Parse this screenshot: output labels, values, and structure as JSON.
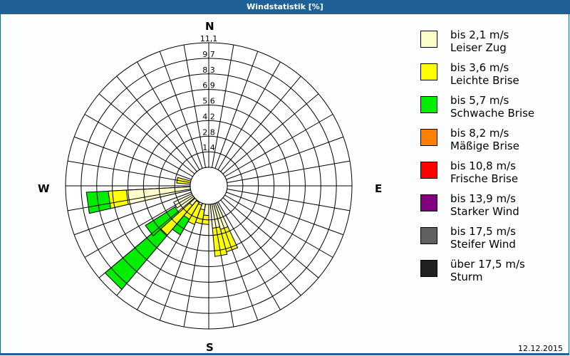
{
  "header": {
    "title": "Windstatistik [%]"
  },
  "compass": {
    "north": "N",
    "east": "E",
    "south": "S",
    "west": "W"
  },
  "footer": {
    "date": "12.12.2015"
  },
  "legend": [
    {
      "range": "bis 2,1 m/s",
      "name": "Leiser Zug",
      "color": "#ffffcc"
    },
    {
      "range": "bis 3,6 m/s",
      "name": "Leichte Brise",
      "color": "#ffff00"
    },
    {
      "range": "bis 5,7 m/s",
      "name": "Schwache Brise",
      "color": "#00ee00"
    },
    {
      "range": "bis 8,2 m/s",
      "name": "Mäßige Brise",
      "color": "#ff8000"
    },
    {
      "range": "bis 10,8 m/s",
      "name": "Frische Brise",
      "color": "#ff0000"
    },
    {
      "range": "bis 13,9 m/s",
      "name": "Starker Wind",
      "color": "#800080"
    },
    {
      "range": "bis 17,5 m/s",
      "name": "Steifer Wind",
      "color": "#606060"
    },
    {
      "range": "über 17,5 m/s",
      "name": "Sturm",
      "color": "#202020"
    }
  ],
  "chart_data": {
    "type": "wind-rose",
    "title": "Windstatistik [%]",
    "rings": [
      "1,4",
      "2,8",
      "4,2",
      "5,6",
      "6,9",
      "8,3",
      "9,7",
      "11,1"
    ],
    "rmax": 11.1,
    "sector_width_deg": 10,
    "series_names": [
      "bis 2,1 m/s",
      "bis 3,6 m/s",
      "bis 5,7 m/s"
    ],
    "sectors": [
      {
        "bearing": 160,
        "cumulative": [
          3.5,
          5.3,
          5.3
        ]
      },
      {
        "bearing": 170,
        "cumulative": [
          3.3,
          5.5,
          5.5
        ]
      },
      {
        "bearing": 185,
        "cumulative": [
          2.3,
          3.0,
          3.0
        ]
      },
      {
        "bearing": 195,
        "cumulative": [
          1.9,
          3.0,
          3.0
        ]
      },
      {
        "bearing": 205,
        "cumulative": [
          1.6,
          3.2,
          3.2
        ]
      },
      {
        "bearing": 215,
        "cumulative": [
          1.5,
          3.0,
          4.4
        ]
      },
      {
        "bearing": 225,
        "cumulative": [
          2.0,
          5.0,
          10.5
        ]
      },
      {
        "bearing": 233,
        "cumulative": [
          3.1,
          3.1,
          5.8
        ]
      },
      {
        "bearing": 240,
        "cumulative": [
          3.0,
          3.0,
          3.0
        ]
      },
      {
        "bearing": 262,
        "cumulative": [
          6.4,
          7.8,
          9.5
        ]
      },
      {
        "bearing": 280,
        "cumulative": [
          1.2,
          2.5,
          2.5
        ]
      },
      {
        "bearing": 300,
        "cumulative": [
          0.5,
          0.7,
          1.2
        ]
      }
    ],
    "legend_position": "right"
  }
}
